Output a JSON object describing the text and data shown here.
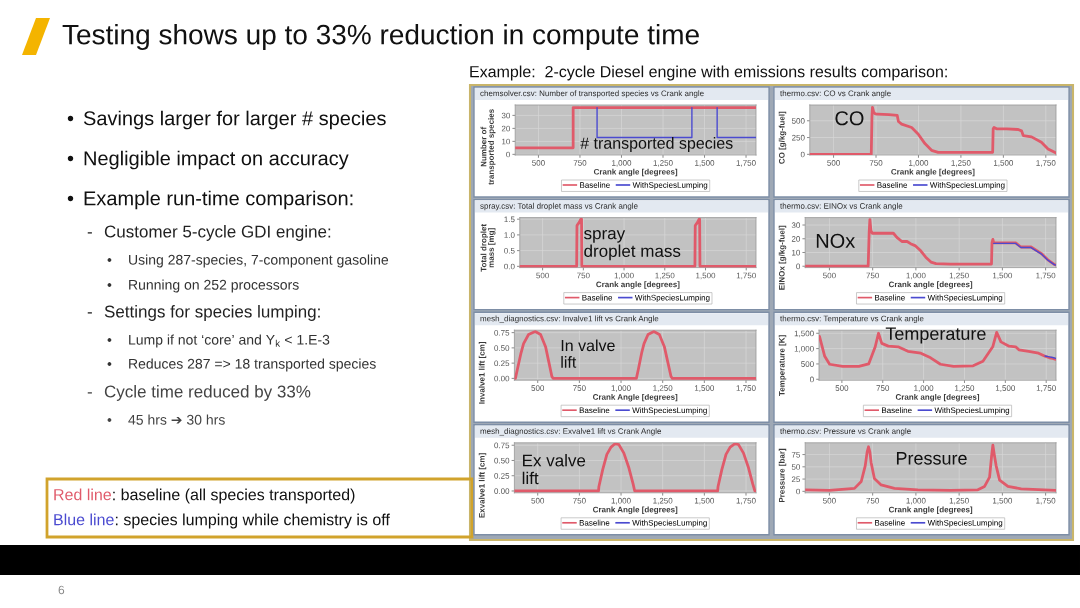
{
  "chart_data": [
    {
      "type": "other",
      "title": "Testing shows up to 33% reduction in compute time",
      "subtitle": "Example:  2-cycle Diesel engine with emissions results comparison:",
      "annotations": [
        "• Savings larger for larger # species",
        "• Negligible impact on accuracy",
        "• Example run-time comparison:",
        "- Customer 5-cycle GDI engine:",
        "• Using 287-species, 7-component gasoline",
        "• Running on 252 processors",
        "- Settings for species lumping:",
        "• Lump if not ‘core’ and Y$_{k}$ < 1.E-3",
        "• Reduces 287 => 18 transported species",
        "- Cycle time reduced by 33%",
        "• 45 hrs ➔ 30 hrs",
        "Red line: baseline (all species transported)",
        "Blue line: species lumping while chemistry is off",
        "6"
      ]
    },
    {
      "type": "line",
      "title": "chemsolver.csv: Number of transported species vs Crank angle",
      "xlabel": "Crank angle [degrees]",
      "ylabel": "Number of transported species",
      "xlim": [
        360,
        1810
      ],
      "xticks": [
        500,
        750,
        {
          "value": 1000,
          "label": "1,000"
        },
        {
          "value": 1250,
          "label": "1,250"
        },
        {
          "value": 1500,
          "label": "1,500"
        },
        {
          "value": 1750,
          "label": "1,750"
        }
      ],
      "ylim": [
        -0.5,
        38
      ],
      "yticks": [
        0,
        10,
        20,
        30
      ],
      "grid": true,
      "legend": "bottom",
      "annotations": [
        "# transported species"
      ],
      "series": [
        {
          "name": "Baseline",
          "color": "#e05a6a",
          "x": [
            360,
            709,
            709,
            1810
          ],
          "values": [
            5,
            5,
            36,
            36
          ]
        },
        {
          "name": "WithSpeciesLumping",
          "color": "#4a4ad0",
          "x": [
            853,
            853,
            1424,
            1424,
            1500,
            1576,
            1576,
            1810
          ],
          "values": [
            36,
            13,
            13,
            36,
            null,
            36,
            13,
            13
          ]
        }
      ]
    },
    {
      "type": "line",
      "title": "thermo.csv: CO vs Crank angle",
      "xlabel": "Crank angle [degrees]",
      "ylabel": "CO [g/kg-fuel]",
      "xlim": [
        360,
        1810
      ],
      "xticks": [
        500,
        750,
        {
          "value": 1000,
          "label": "1,000"
        },
        {
          "value": 1250,
          "label": "1,250"
        },
        {
          "value": 1500,
          "label": "1,500"
        },
        {
          "value": 1750,
          "label": "1,750"
        }
      ],
      "ylim": [
        -10,
        735
      ],
      "yticks": [
        0,
        250,
        500
      ],
      "grid": true,
      "legend": "bottom",
      "annotations": [
        "CO"
      ],
      "series": [
        {
          "name": "Baseline",
          "color": "#e05a6a",
          "x": [
            360,
            722,
            726,
            729,
            735,
            742,
            750,
            760,
            826,
            875,
            882,
            901,
            960,
            999,
            1038,
            1077,
            1116,
            1200,
            1300,
            1437,
            1440,
            1445,
            1460,
            1520,
            1587,
            1607,
            1617,
            1666,
            1724,
            1763,
            1802,
            1810
          ],
          "values": [
            0,
            0,
            560,
            700,
            640,
            610,
            600,
            600,
            590,
            580,
            490,
            450,
            400,
            300,
            160,
            60,
            30,
            30,
            30,
            30,
            380,
            400,
            380,
            380,
            370,
            350,
            280,
            260,
            180,
            80,
            30,
            20
          ]
        },
        {
          "name": "WithSpeciesLumping",
          "color": "#4a4ad0"
        }
      ]
    },
    {
      "type": "line",
      "title": "spray.csv: Total droplet mass vs Crank angle",
      "xlabel": "Crank angle [degrees]",
      "ylabel": "Total droplet mass [mg]",
      "xlim": [
        360,
        1810
      ],
      "xticks": [
        500,
        750,
        {
          "value": 1000,
          "label": "1,000"
        },
        {
          "value": 1250,
          "label": "1,250"
        },
        {
          "value": 1500,
          "label": "1,500"
        },
        {
          "value": 1750,
          "label": "1,750"
        }
      ],
      "ylim": [
        -0.04,
        1.55
      ],
      "yticks": [
        {
          "value": 0,
          "label": "0.0"
        },
        {
          "value": 0.5,
          "label": "0.5"
        },
        {
          "value": 1,
          "label": "1.0"
        },
        {
          "value": 1.5,
          "label": "1.5"
        }
      ],
      "grid": true,
      "legend": "bottom",
      "annotations": [
        "spray\ndroplet mass"
      ],
      "series": [
        {
          "name": "Baseline",
          "color": "#e05a6a",
          "x": [
            360,
            709,
            711,
            718,
            725,
            730,
            735,
            739,
            741,
            1435,
            1437,
            1444,
            1451,
            1456,
            1461,
            1464,
            1466,
            1810
          ],
          "values": [
            0,
            0,
            1.3,
            1.35,
            1.4,
            1.45,
            1.5,
            1.5,
            0,
            0,
            1.3,
            1.35,
            1.4,
            1.45,
            1.5,
            1.5,
            0,
            0
          ]
        },
        {
          "name": "WithSpeciesLumping",
          "color": "#4a4ad0"
        }
      ]
    },
    {
      "type": "line",
      "title": "thermo.csv: EINOx vs Crank angle",
      "xlabel": "Crank angle [degrees]",
      "ylabel": "EINOx [g/kg-fuel]",
      "xlim": [
        360,
        1810
      ],
      "xticks": [
        500,
        750,
        {
          "value": 1000,
          "label": "1,000"
        },
        {
          "value": 1250,
          "label": "1,250"
        },
        {
          "value": 1500,
          "label": "1,500"
        },
        {
          "value": 1750,
          "label": "1,750"
        }
      ],
      "ylim": [
        -1,
        35.4
      ],
      "yticks": [
        0,
        10,
        20,
        30
      ],
      "grid": true,
      "legend": "bottom",
      "annotations": [
        "NOx"
      ],
      "series": [
        {
          "name": "Baseline",
          "color": "#e05a6a",
          "x": [
            360,
            724,
            730,
            734,
            740,
            748,
            800,
            870,
            890,
            919,
            949,
            969,
            998,
            1028,
            1057,
            1087,
            1116,
            1200,
            1437,
            1440,
            1445,
            1450,
            1520,
            1577,
            1607,
            1666,
            1724,
            1763,
            1802,
            1810
          ],
          "values": [
            0,
            0,
            25,
            34,
            26,
            24,
            24,
            24,
            21,
            18,
            18,
            16.4,
            14.8,
            11.2,
            6.6,
            3,
            1.9,
            1.6,
            1.6,
            17,
            19.5,
            17,
            17,
            17,
            14,
            14,
            9.4,
            4.7,
            1.2,
            1
          ]
        },
        {
          "name": "WithSpeciesLumping",
          "color": "#4a4ad0",
          "x": [
            1450,
            1520,
            1577,
            1607,
            1666,
            1724,
            1763,
            1802,
            1810
          ],
          "values": [
            16.6,
            16.6,
            16.6,
            13.6,
            13.6,
            9,
            4.4,
            1,
            0.9
          ]
        }
      ]
    },
    {
      "type": "line",
      "title": "mesh_diagnostics.csv: Invalve1 lift vs Crank Angle",
      "xlabel": "Crank Angle [degrees]",
      "ylabel": "Invalve1 lift [cm]",
      "xlim": [
        360,
        1810
      ],
      "xticks": [
        500,
        750,
        {
          "value": 1000,
          "label": "1,000"
        },
        {
          "value": 1250,
          "label": "1,250"
        },
        {
          "value": 1500,
          "label": "1,500"
        },
        {
          "value": 1750,
          "label": "1,750"
        }
      ],
      "ylim": [
        -0.03,
        0.79
      ],
      "yticks": [
        {
          "value": 0,
          "label": "0.00"
        },
        {
          "value": 0.25,
          "label": "0.25"
        },
        {
          "value": 0.5,
          "label": "0.50"
        },
        {
          "value": 0.75,
          "label": "0.75"
        }
      ],
      "grid": true,
      "legend": "bottom",
      "annotations": [
        "In valve\nlift"
      ],
      "series": [
        {
          "name": "Baseline",
          "color": "#e05a6a",
          "x": [
            366,
            378,
            400,
            415,
            445,
            485,
            517,
            547,
            568,
            585,
            592,
            1092,
            1104,
            1124,
            1138,
            1162,
            1197,
            1230,
            1260,
            1282,
            1300,
            1308,
            1810
          ],
          "values": [
            0,
            0.15,
            0.42,
            0.57,
            0.72,
            0.77,
            0.72,
            0.52,
            0.25,
            0.03,
            0,
            0,
            0.15,
            0.42,
            0.57,
            0.72,
            0.77,
            0.72,
            0.52,
            0.25,
            0.03,
            0,
            0
          ]
        },
        {
          "name": "WithSpeciesLumping",
          "color": "#4a4ad0"
        }
      ]
    },
    {
      "type": "line",
      "title": "thermo.csv: Temperature vs Crank angle",
      "xlabel": "Crank angle [degrees]",
      "ylabel": "Temperature [K]",
      "xlim": [
        360,
        1810
      ],
      "xticks": [
        500,
        750,
        {
          "value": 1000,
          "label": "1,000"
        },
        {
          "value": 1250,
          "label": "1,250"
        },
        {
          "value": 1500,
          "label": "1,500"
        },
        {
          "value": 1750,
          "label": "1,750"
        }
      ],
      "ylim": [
        -30,
        1600
      ],
      "yticks": [
        0,
        500,
        {
          "value": 1000,
          "label": "1,000"
        },
        {
          "value": 1500,
          "label": "1,500"
        }
      ],
      "grid": true,
      "legend": "bottom",
      "annotations": [
        "Temperature"
      ],
      "series": [
        {
          "name": "Baseline",
          "color": "#e05a6a",
          "x": [
            363,
            395,
            425,
            504,
            604,
            664,
            704,
            724,
            744,
            784,
            844,
            864,
            904,
            983,
            1043,
            1103,
            1183,
            1303,
            1363,
            1423,
            1447,
            1473,
            1523,
            1563,
            1583,
            1643,
            1703,
            1743,
            1770,
            1790,
            1808
          ],
          "values": [
            1400,
            750,
            490,
            420,
            420,
            500,
            1060,
            1500,
            1170,
            1080,
            1060,
            1010,
            910,
            850,
            700,
            490,
            420,
            440,
            590,
            1060,
            1530,
            1220,
            1080,
            1060,
            960,
            910,
            850,
            750,
            700,
            680,
            650
          ]
        },
        {
          "name": "WithSpeciesLumping",
          "color": "#4a4ad0",
          "x": [
            1743,
            1770,
            1790,
            1808
          ],
          "values": [
            760,
            730,
            710,
            680
          ]
        }
      ]
    },
    {
      "type": "line",
      "title": "mesh_diagnostics.csv: Exvalve1 lift vs Crank Angle",
      "xlabel": "Crank Angle [degrees]",
      "ylabel": "Exvalve1 lift [cm]",
      "xlim": [
        360,
        1810
      ],
      "xticks": [
        500,
        750,
        {
          "value": 1000,
          "label": "1,000"
        },
        {
          "value": 1250,
          "label": "1,250"
        },
        {
          "value": 1500,
          "label": "1,500"
        },
        {
          "value": 1750,
          "label": "1,750"
        }
      ],
      "ylim": [
        -0.03,
        0.79
      ],
      "yticks": [
        {
          "value": 0,
          "label": "0.00"
        },
        {
          "value": 0.25,
          "label": "0.25"
        },
        {
          "value": 0.5,
          "label": "0.50"
        },
        {
          "value": 0.75,
          "label": "0.75"
        }
      ],
      "grid": true,
      "legend": "bottom",
      "annotations": [
        "Ex valve\nlift"
      ],
      "series": [
        {
          "name": "Baseline",
          "color": "#e05a6a",
          "x": [
            360,
            865,
            867,
            890,
            915,
            940,
            962,
            972,
            987,
            1017,
            1047,
            1072,
            1082,
            1580,
            1582,
            1605,
            1630,
            1655,
            1680,
            1690,
            1705,
            1735,
            1765,
            1790,
            1803,
            1810
          ],
          "values": [
            0,
            0,
            0.07,
            0.35,
            0.6,
            0.72,
            0.77,
            0.77,
            0.76,
            0.62,
            0.38,
            0.12,
            0,
            0,
            0.07,
            0.35,
            0.6,
            0.72,
            0.77,
            0.77,
            0.76,
            0.62,
            0.38,
            0.12,
            0,
            0
          ]
        },
        {
          "name": "WithSpeciesLumping",
          "color": "#4a4ad0"
        }
      ]
    },
    {
      "type": "line",
      "title": "thermo.csv: Pressure vs Crank angle",
      "xlabel": "Crank angle [degrees]",
      "ylabel": "Pressure [bar]",
      "xlim": [
        360,
        1810
      ],
      "xticks": [
        500,
        750,
        {
          "value": 1000,
          "label": "1,000"
        },
        {
          "value": 1250,
          "label": "1,250"
        },
        {
          "value": 1500,
          "label": "1,500"
        },
        {
          "value": 1750,
          "label": "1,750"
        }
      ],
      "ylim": [
        -3,
        99
      ],
      "yticks": [
        0,
        25,
        50,
        75
      ],
      "grid": true,
      "legend": "bottom",
      "annotations": [
        "Pressure"
      ],
      "series": [
        {
          "name": "Baseline",
          "color": "#e05a6a",
          "x": [
            362,
            500,
            645,
            684,
            707,
            718,
            726,
            734,
            741,
            760,
            799,
            876,
            1011,
            1200,
            1358,
            1397,
            1426,
            1437,
            1445,
            1453,
            1464,
            1484,
            1532,
            1609,
            1808
          ],
          "values": [
            3,
            2,
            6,
            20,
            52,
            80,
            91,
            80,
            59,
            26,
            13,
            6,
            3,
            2,
            3,
            10,
            29,
            70,
            94,
            75,
            52,
            23,
            10,
            5,
            2
          ]
        },
        {
          "name": "WithSpeciesLumping",
          "color": "#4a4ad0"
        }
      ]
    }
  ]
}
